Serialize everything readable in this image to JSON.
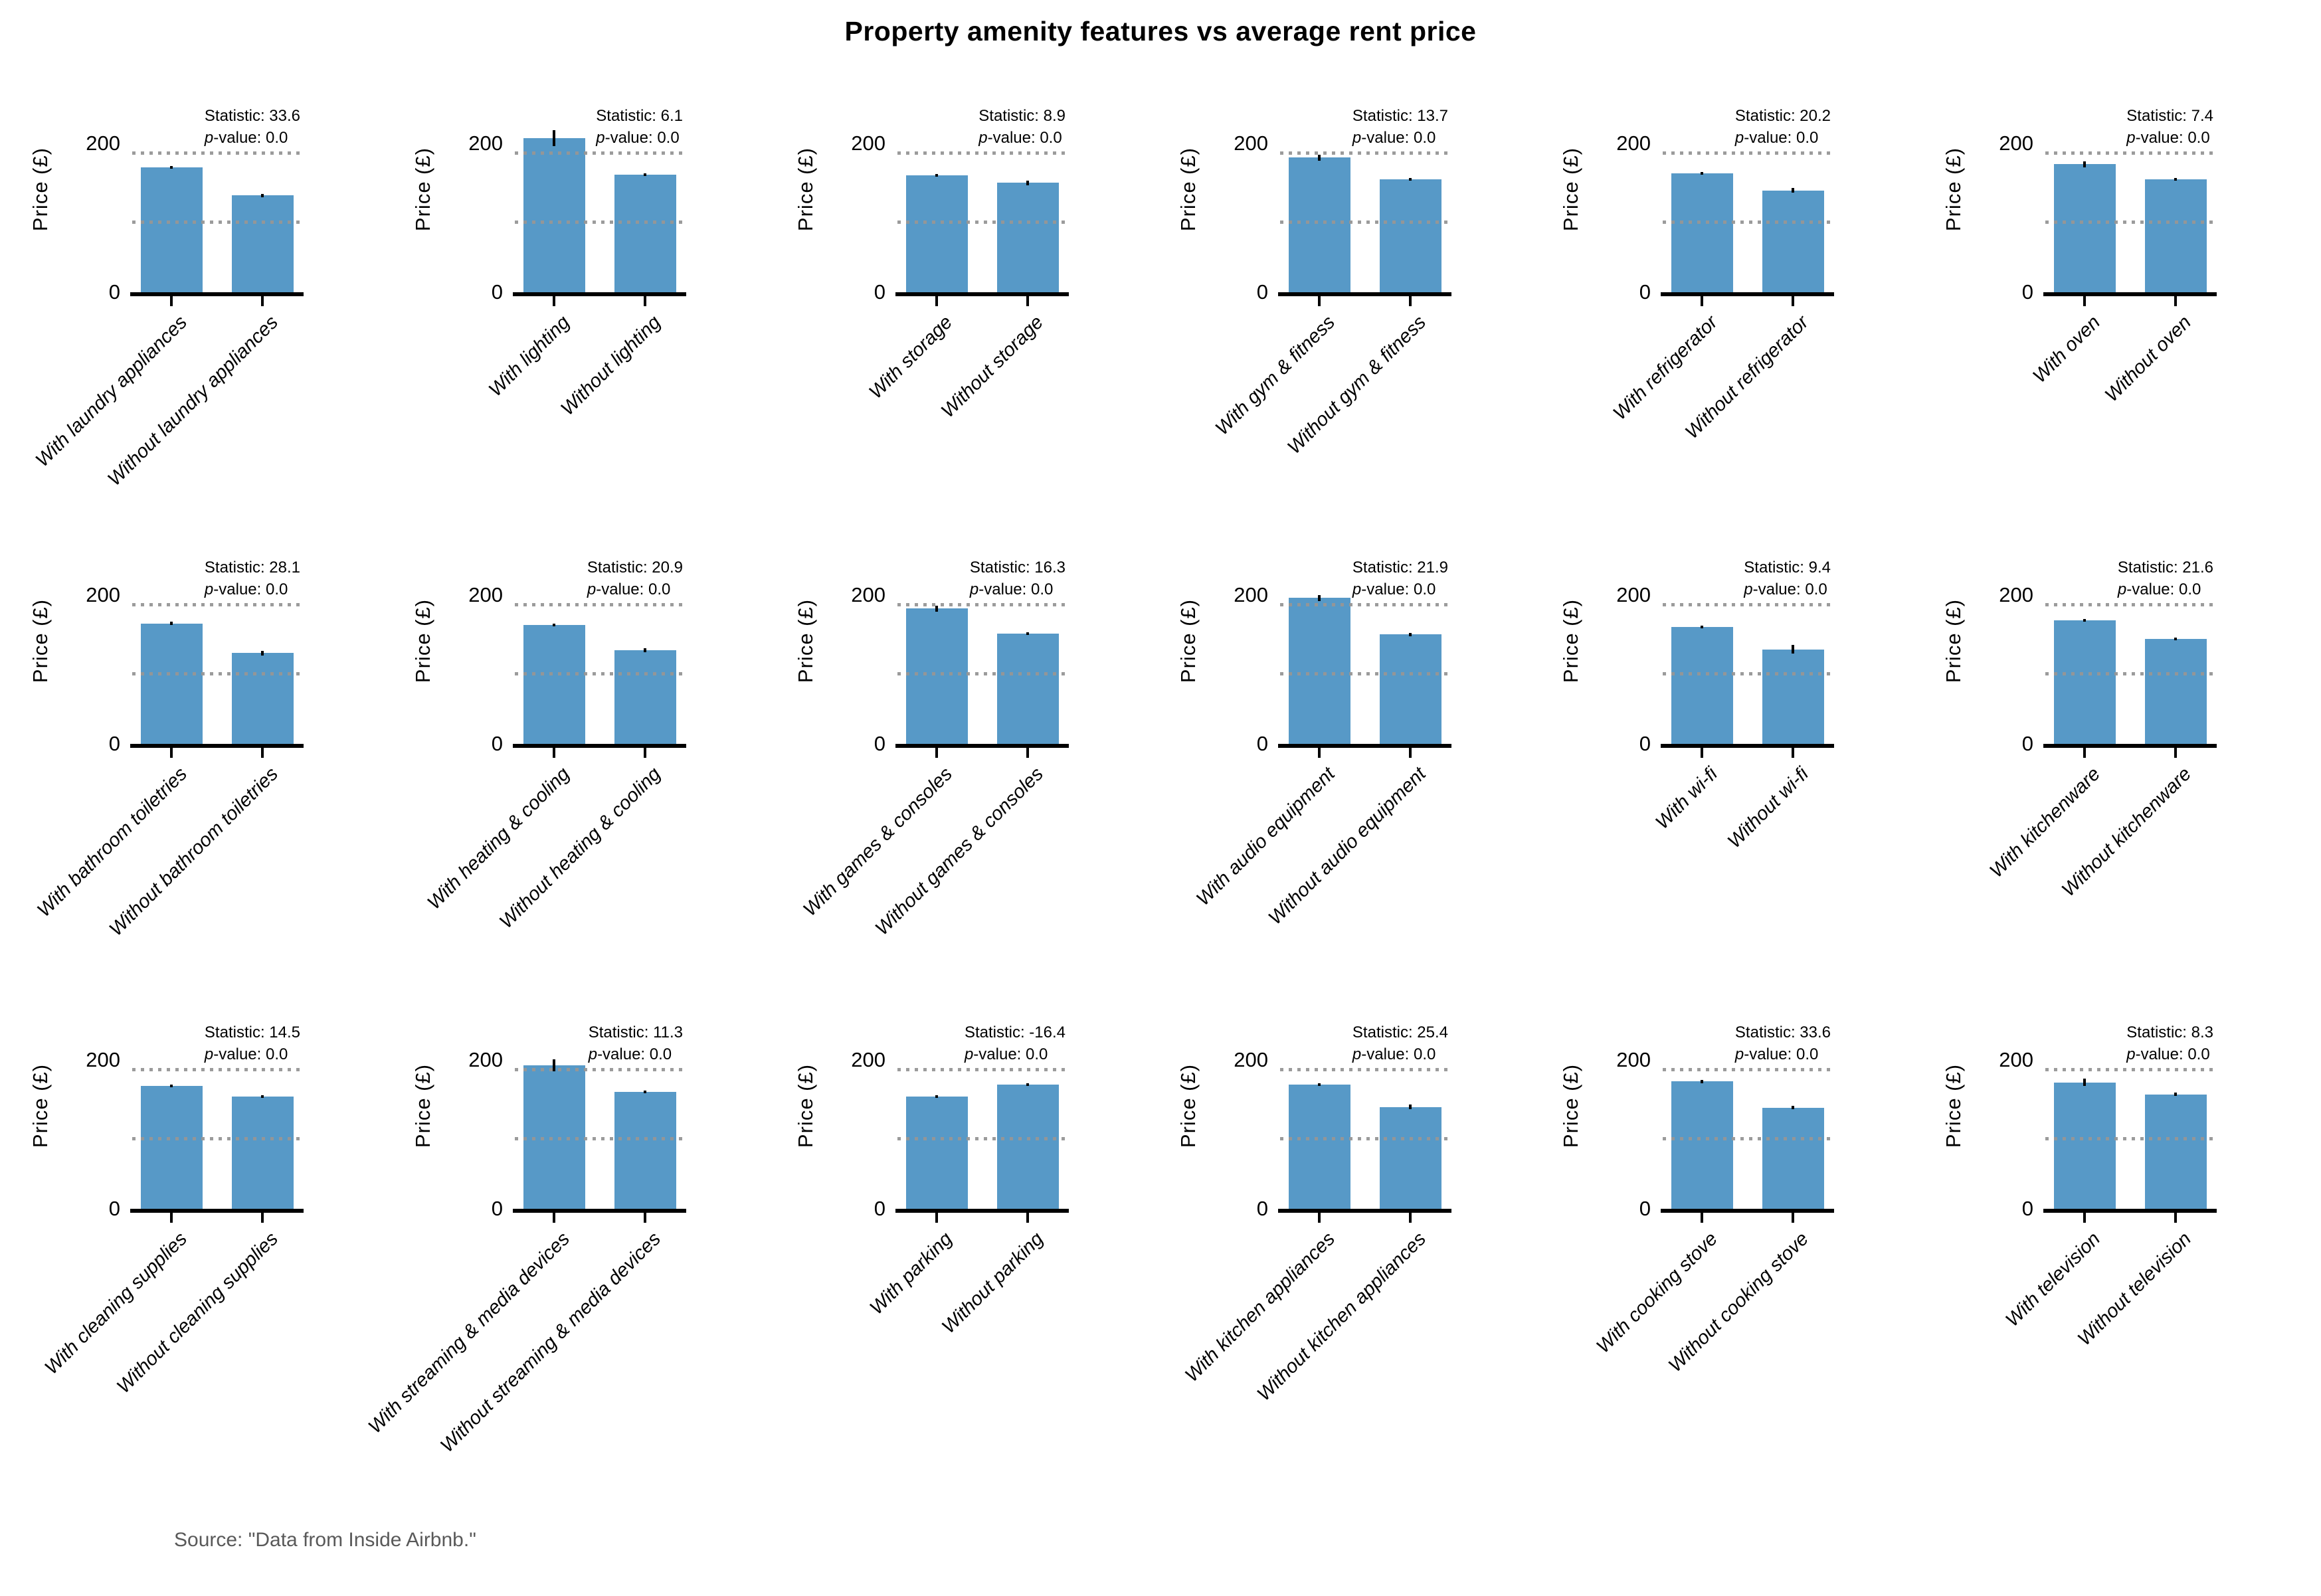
{
  "title": "Property amenity features vs average rent price",
  "source_note": "Source: \"Data from Inside Airbnb.\"",
  "stat_prefix": "Statistic: ",
  "p_italic": "p",
  "p_suffix": "-value: ",
  "colors": {
    "bar": "#5799C7",
    "gridline": "#969696",
    "axis": "#000000",
    "error_bar": "#000000",
    "source_text": "#595959",
    "text": "#000000"
  },
  "axis": {
    "ylabel": "Price (£)",
    "yticks": [
      {
        "value": 0,
        "label": "0"
      },
      {
        "value": 200,
        "label": "200"
      }
    ],
    "gridline_values": [
      92,
      185
    ],
    "ylim": [
      0,
      277
    ]
  },
  "chart_data": {
    "type": "bar",
    "title": "Property amenity features vs average rent price",
    "ylabel": "Price (£)",
    "ylim": [
      0,
      277
    ],
    "grid": "dotted reference lines at 92 and 185",
    "legend": "none",
    "subplots": [
      {
        "feature": "laundry appliances",
        "labels": [
          "With laundry appliances",
          "Without laundry appliances"
        ],
        "values": [
          168,
          130
        ],
        "errors": [
          2,
          2
        ],
        "statistic": "33.6",
        "p_value": "0.0"
      },
      {
        "feature": "lighting",
        "labels": [
          "With lighting",
          "Without lighting"
        ],
        "values": [
          207,
          158
        ],
        "errors": [
          11,
          2
        ],
        "statistic": "6.1",
        "p_value": "0.0"
      },
      {
        "feature": "storage",
        "labels": [
          "With storage",
          "Without storage"
        ],
        "values": [
          157,
          147
        ],
        "errors": [
          2,
          3
        ],
        "statistic": "8.9",
        "p_value": "0.0"
      },
      {
        "feature": "gym & fitness",
        "labels": [
          "With gym & fitness",
          "Without gym & fitness"
        ],
        "values": [
          181,
          152
        ],
        "errors": [
          4,
          2
        ],
        "statistic": "13.7",
        "p_value": "0.0"
      },
      {
        "feature": "refrigerator",
        "labels": [
          "With refrigerator",
          "Without refrigerator"
        ],
        "values": [
          160,
          137
        ],
        "errors": [
          2,
          3
        ],
        "statistic": "20.2",
        "p_value": "0.0"
      },
      {
        "feature": "oven",
        "labels": [
          "With oven",
          "Without oven"
        ],
        "values": [
          172,
          152
        ],
        "errors": [
          4,
          2
        ],
        "statistic": "7.4",
        "p_value": "0.0"
      },
      {
        "feature": "bathroom toiletries",
        "labels": [
          "With bathroom toiletries",
          "Without bathroom toiletries"
        ],
        "values": [
          162,
          122
        ],
        "errors": [
          2,
          3
        ],
        "statistic": "28.1",
        "p_value": "0.0"
      },
      {
        "feature": "heating & cooling",
        "labels": [
          "With heating & cooling",
          "Without heating & cooling"
        ],
        "values": [
          160,
          126
        ],
        "errors": [
          2,
          3
        ],
        "statistic": "20.9",
        "p_value": "0.0"
      },
      {
        "feature": "games & consoles",
        "labels": [
          "With games & consoles",
          "Without games & consoles"
        ],
        "values": [
          182,
          148
        ],
        "errors": [
          4,
          2
        ],
        "statistic": "16.3",
        "p_value": "0.0"
      },
      {
        "feature": "audio equipment",
        "labels": [
          "With audio equipment",
          "Without audio equipment"
        ],
        "values": [
          196,
          147
        ],
        "errors": [
          4,
          2
        ],
        "statistic": "21.9",
        "p_value": "0.0"
      },
      {
        "feature": "wi-fi",
        "labels": [
          "With wi-fi",
          "Without wi-fi"
        ],
        "values": [
          157,
          127
        ],
        "errors": [
          2,
          6
        ],
        "statistic": "9.4",
        "p_value": "0.0"
      },
      {
        "feature": "kitchenware",
        "labels": [
          "With kitchenware",
          "Without kitchenware"
        ],
        "values": [
          166,
          141
        ],
        "errors": [
          2,
          2
        ],
        "statistic": "21.6",
        "p_value": "0.0"
      },
      {
        "feature": "cleaning supplies",
        "labels": [
          "With cleaning supplies",
          "Without cleaning supplies"
        ],
        "values": [
          165,
          151
        ],
        "errors": [
          2,
          2
        ],
        "statistic": "14.5",
        "p_value": "0.0"
      },
      {
        "feature": "streaming & media devices",
        "labels": [
          "With streaming & media devices",
          "Without streaming & media devices"
        ],
        "values": [
          193,
          157
        ],
        "errors": [
          8,
          2
        ],
        "statistic": "11.3",
        "p_value": "0.0"
      },
      {
        "feature": "parking",
        "labels": [
          "With parking",
          "Without parking"
        ],
        "values": [
          151,
          167
        ],
        "errors": [
          2,
          2
        ],
        "statistic": "-16.4",
        "p_value": "0.0"
      },
      {
        "feature": "kitchen appliances",
        "labels": [
          "With kitchen appliances",
          "Without kitchen appliances"
        ],
        "values": [
          167,
          137
        ],
        "errors": [
          2,
          3
        ],
        "statistic": "25.4",
        "p_value": "0.0"
      },
      {
        "feature": "cooking stove",
        "labels": [
          "With cooking stove",
          "Without cooking stove"
        ],
        "values": [
          171,
          136
        ],
        "errors": [
          2,
          2
        ],
        "statistic": "33.6",
        "p_value": "0.0"
      },
      {
        "feature": "television",
        "labels": [
          "With television",
          "Without television"
        ],
        "values": [
          170,
          154
        ],
        "errors": [
          5,
          2
        ],
        "statistic": "8.3",
        "p_value": "0.0"
      }
    ]
  }
}
